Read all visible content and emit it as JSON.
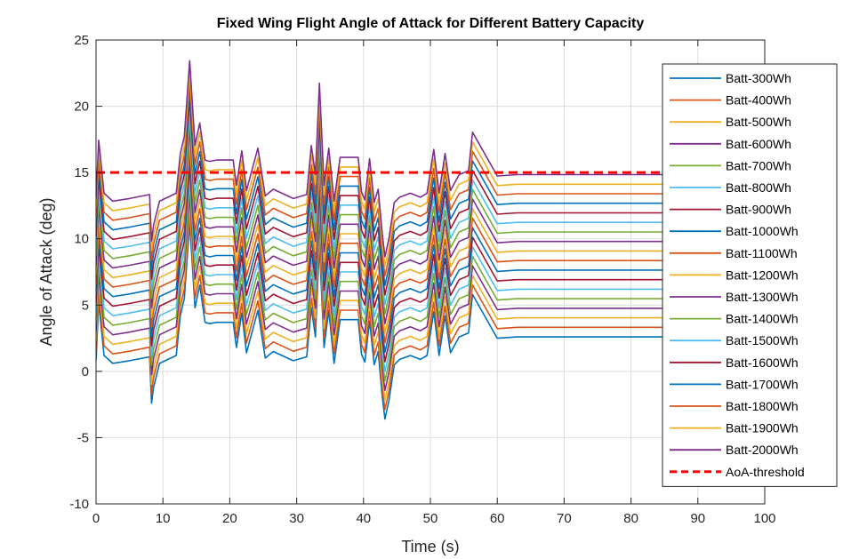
{
  "chart_data": {
    "type": "line",
    "title": "Fixed Wing Flight Angle of Attack for Different Battery Capacity",
    "xlabel": "Time (s)",
    "ylabel": "Angle of Attack (deg)",
    "xlim": [
      0,
      100
    ],
    "ylim": [
      -10,
      25
    ],
    "xticks": [
      "0",
      "10",
      "20",
      "30",
      "40",
      "50",
      "60",
      "70",
      "80",
      "90",
      "100"
    ],
    "yticks": [
      "-10",
      "-5",
      "0",
      "5",
      "10",
      "15",
      "20",
      "25"
    ],
    "grid": true,
    "legend_position": "top-right",
    "base_profile": {
      "t": [
        0,
        0.4,
        1.2,
        2.5,
        5,
        8,
        8.3,
        8.6,
        9.5,
        12,
        12.6,
        13.2,
        14,
        14.8,
        15.5,
        16.3,
        17,
        18,
        20.5,
        21,
        21.8,
        22.5,
        24.2,
        25.3,
        26.5,
        29.5,
        31.5,
        32.2,
        32.8,
        33.4,
        34.1,
        34.8,
        35.6,
        36.5,
        38,
        39.2,
        39.7,
        40.2,
        40.9,
        41.6,
        42.2,
        42.8,
        43.2,
        43.8,
        44.6,
        45.4,
        47,
        48.5,
        49.5,
        50.5,
        51.3,
        52.2,
        53,
        54.3,
        55.7,
        56.3,
        60,
        63,
        100
      ],
      "aoa_300wh": [
        0.8,
        5.2,
        1.2,
        0.6,
        0.8,
        1.1,
        -2.4,
        -1.2,
        0.6,
        1.2,
        4.2,
        5.5,
        11.2,
        4.8,
        6.5,
        3.7,
        3.6,
        3.7,
        3.7,
        1.8,
        4.4,
        1.4,
        4.6,
        1.0,
        1.5,
        0.8,
        1.1,
        4.8,
        2.6,
        9.5,
        1.8,
        4.6,
        0.6,
        3.9,
        3.9,
        3.9,
        1.3,
        0.7,
        3.8,
        0.5,
        1.5,
        -1.9,
        -3.6,
        -2.2,
        0.5,
        0.9,
        1.2,
        0.9,
        1.2,
        4.5,
        1.2,
        4.2,
        1.4,
        2.6,
        2.9,
        5.8,
        2.5,
        2.6,
        2.6
      ]
    },
    "step_between_series": 0.72,
    "series": [
      {
        "name": "Batt-300Wh",
        "color": "#0072BD"
      },
      {
        "name": "Batt-400Wh",
        "color": "#D95319"
      },
      {
        "name": "Batt-500Wh",
        "color": "#EDB120"
      },
      {
        "name": "Batt-600Wh",
        "color": "#7E2F8E"
      },
      {
        "name": "Batt-700Wh",
        "color": "#77AC30"
      },
      {
        "name": "Batt-800Wh",
        "color": "#4DBEEE"
      },
      {
        "name": "Batt-900Wh",
        "color": "#A2142F"
      },
      {
        "name": "Batt-1000Wh",
        "color": "#0072BD"
      },
      {
        "name": "Batt-1100Wh",
        "color": "#D95319"
      },
      {
        "name": "Batt-1200Wh",
        "color": "#EDB120"
      },
      {
        "name": "Batt-1300Wh",
        "color": "#7E2F8E"
      },
      {
        "name": "Batt-1400Wh",
        "color": "#77AC30"
      },
      {
        "name": "Batt-1500Wh",
        "color": "#4DBEEE"
      },
      {
        "name": "Batt-1600Wh",
        "color": "#A2142F"
      },
      {
        "name": "Batt-1700Wh",
        "color": "#0072BD"
      },
      {
        "name": "Batt-1800Wh",
        "color": "#D95319"
      },
      {
        "name": "Batt-1900Wh",
        "color": "#EDB120"
      },
      {
        "name": "Batt-2000Wh",
        "color": "#7E2F8E"
      }
    ],
    "threshold": {
      "name": "AoA-threshold",
      "value": 15,
      "color": "#FF0000",
      "style": "dashed"
    }
  }
}
